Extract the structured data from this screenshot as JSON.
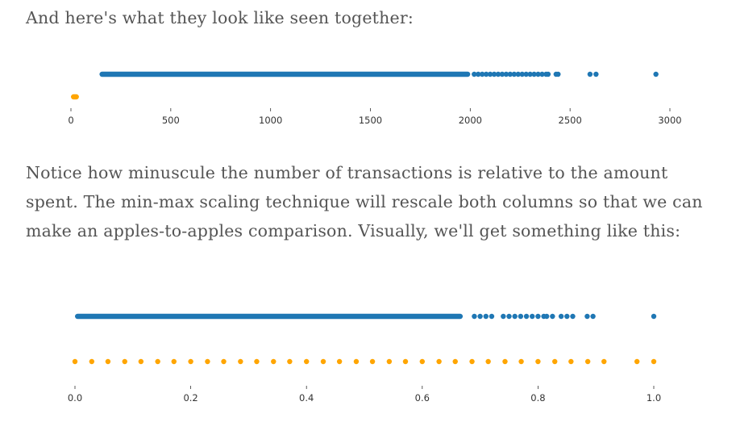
{
  "text": {
    "intro": "And here's what they look like seen together:",
    "notice": "Notice how minuscule the number of transactions is relative to the amount spent. The min-max scaling technique will rescale both columns so that we can make an apples-to-apples comparison. Visually, we'll get something like this:"
  },
  "colors": {
    "blue": "#1f77b4",
    "orange": "#ffa500",
    "axis": "#333333"
  },
  "chart_data": [
    {
      "type": "scatter",
      "title": "",
      "xlabel": "",
      "ylabel": "",
      "xlim": [
        -8,
        3010
      ],
      "grid": false,
      "legend": "none",
      "ticks": [
        "0",
        "500",
        "1000",
        "1500",
        "2000",
        "2500",
        "3000"
      ],
      "tick_values": [
        0,
        500,
        1000,
        1500,
        2000,
        2500,
        3000
      ],
      "series": [
        {
          "color": "#1f77b4",
          "y": 1,
          "range": [
            143,
            2000
          ],
          "points": [
            2020,
            2040,
            2060,
            2080,
            2100,
            2120,
            2140,
            2160,
            2180,
            2200,
            2220,
            2240,
            2260,
            2280,
            2300,
            2320,
            2340,
            2360,
            2380,
            2390,
            2430,
            2440,
            2600,
            2630,
            2930
          ]
        },
        {
          "color": "#ffa500",
          "y": 0,
          "range": [
            0,
            40
          ],
          "points": []
        }
      ]
    },
    {
      "type": "scatter",
      "title": "",
      "xlabel": "",
      "ylabel": "",
      "xlim": [
        -0.015,
        1.02
      ],
      "grid": false,
      "legend": "none",
      "ticks": [
        "0.0",
        "0.2",
        "0.4",
        "0.6",
        "0.8",
        "1.0"
      ],
      "tick_values": [
        0.0,
        0.2,
        0.4,
        0.6,
        0.8,
        1.0
      ],
      "series": [
        {
          "color": "#1f77b4",
          "y": 1,
          "range": [
            0.0,
            0.67
          ],
          "points": [
            0.69,
            0.7,
            0.71,
            0.72,
            0.74,
            0.75,
            0.76,
            0.77,
            0.78,
            0.79,
            0.8,
            0.81,
            0.815,
            0.825,
            0.84,
            0.85,
            0.86,
            0.885,
            0.895,
            1.0
          ]
        },
        {
          "color": "#ffa500",
          "y": 0,
          "range": null,
          "points": [
            0.0,
            0.029,
            0.057,
            0.086,
            0.114,
            0.143,
            0.171,
            0.2,
            0.229,
            0.257,
            0.286,
            0.314,
            0.343,
            0.371,
            0.4,
            0.429,
            0.457,
            0.486,
            0.514,
            0.543,
            0.571,
            0.6,
            0.629,
            0.657,
            0.686,
            0.714,
            0.743,
            0.771,
            0.8,
            0.829,
            0.857,
            0.886,
            0.914,
            0.971,
            1.0
          ]
        }
      ]
    }
  ]
}
